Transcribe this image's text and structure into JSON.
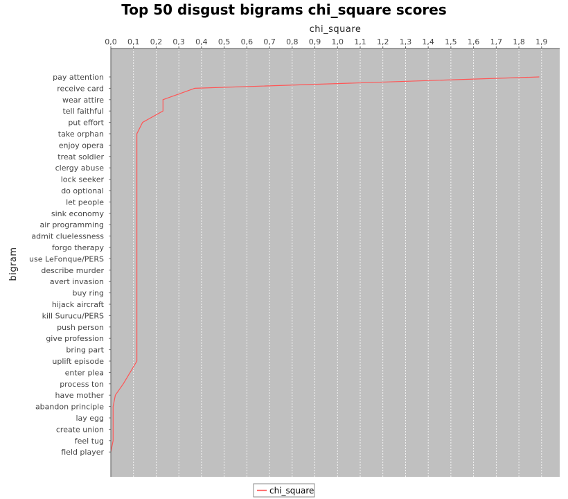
{
  "chart_data": {
    "type": "line",
    "title": "Top 50 disgust bigrams chi_square scores",
    "xlabel": "chi_square",
    "ylabel": "bigram",
    "orientation": "horizontal",
    "x_axis_position": "top",
    "xlim": [
      0.0,
      1.98
    ],
    "x_ticks": [
      "0,0",
      "0,1",
      "0,2",
      "0,3",
      "0,4",
      "0,5",
      "0,6",
      "0,7",
      "0,8",
      "0,9",
      "1,0",
      "1,1",
      "1,2",
      "1,3",
      "1,4",
      "1,5",
      "1,6",
      "1,7",
      "1,8",
      "1,9"
    ],
    "x_tick_values": [
      0.0,
      0.1,
      0.2,
      0.3,
      0.4,
      0.5,
      0.6,
      0.7,
      0.8,
      0.9,
      1.0,
      1.1,
      1.2,
      1.3,
      1.4,
      1.5,
      1.6,
      1.7,
      1.8,
      1.9
    ],
    "grid": true,
    "legend": "bottom",
    "series": [
      {
        "name": "chi_square",
        "color": "#ff5555",
        "categories": [
          "pay attention",
          "receive card",
          "wear attire",
          "tell faithful",
          "put effort",
          "take orphan",
          "enjoy opera",
          "treat soldier",
          "clergy abuse",
          "lock seeker",
          "do optional",
          "let people",
          "sink economy",
          "air programming",
          "admit cluelessness",
          "forgo therapy",
          "use LeFonque/PERS",
          "describe murder",
          "avert invasion",
          "buy ring",
          "hijack aircraft",
          "kill Surucu/PERS",
          "push person",
          "give profession",
          "bring part",
          "uplift episode",
          "enter plea",
          "process ton",
          "have mother",
          "abandon principle",
          "lay egg",
          "create union",
          "feel tug",
          "field player"
        ],
        "values": [
          1.89,
          0.37,
          0.23,
          0.23,
          0.14,
          0.115,
          0.115,
          0.115,
          0.115,
          0.115,
          0.115,
          0.115,
          0.115,
          0.115,
          0.115,
          0.115,
          0.115,
          0.115,
          0.115,
          0.115,
          0.115,
          0.115,
          0.115,
          0.115,
          0.115,
          0.115,
          0.085,
          0.055,
          0.02,
          0.01,
          0.01,
          0.01,
          0.01,
          0.0
        ]
      }
    ]
  },
  "colors": {
    "plot_background": "#c0c0c0",
    "gridline": "#ffffff",
    "series_line": "#ff5555"
  }
}
